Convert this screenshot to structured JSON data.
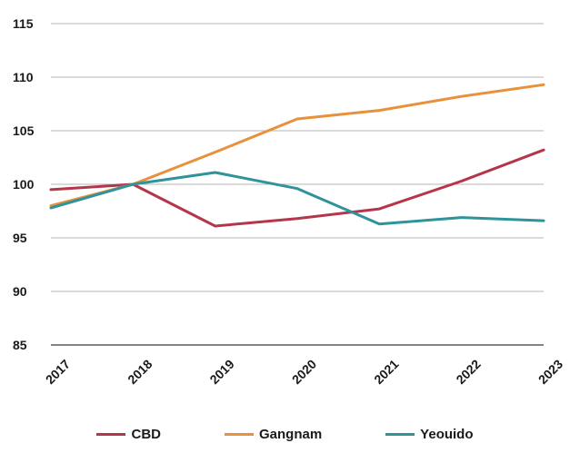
{
  "chart_data": {
    "type": "line",
    "title": "",
    "xlabel": "",
    "ylabel": "",
    "categories": [
      "2017",
      "2018",
      "2019",
      "2020",
      "2021",
      "2022",
      "2023"
    ],
    "ylim": [
      85,
      115
    ],
    "yticks": [
      "85",
      "90",
      "95",
      "100",
      "105",
      "110",
      "115"
    ],
    "grid": true,
    "legend_position": "bottom",
    "series": [
      {
        "name": "CBD",
        "color": "#b5364b",
        "values": [
          99.5,
          100.0,
          96.1,
          96.8,
          97.7,
          100.3,
          103.2
        ]
      },
      {
        "name": "Gangnam",
        "color": "#e8913a",
        "values": [
          98.0,
          100.0,
          103.0,
          106.1,
          106.9,
          108.2,
          109.3
        ]
      },
      {
        "name": "Yeouido",
        "color": "#2f939c",
        "values": [
          97.8,
          100.0,
          101.1,
          99.6,
          96.3,
          96.9,
          96.6
        ]
      }
    ]
  }
}
